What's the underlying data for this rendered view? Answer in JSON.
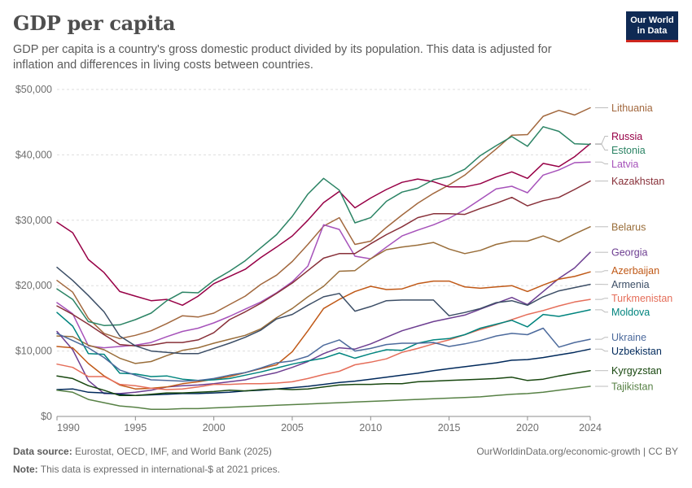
{
  "header": {
    "title": "GDP per capita",
    "subtitle": "GDP per capita is a country's gross domestic product divided by its population. This data is adjusted for inflation and differences in living costs between countries.",
    "logo": "Our World in Data"
  },
  "footer": {
    "source_label": "Data source:",
    "source_text": "Eurostat, OECD, IMF, and World Bank (2025)",
    "note_label": "Note:",
    "note_text": "This data is expressed in international-$ at 2021 prices.",
    "link": "OurWorldinData.org/economic-growth | CC BY"
  },
  "chart_data": {
    "type": "line",
    "title": "GDP per capita",
    "xlim": [
      1990,
      2024
    ],
    "ylim": [
      0,
      50000
    ],
    "x_ticks": [
      1990,
      1995,
      2000,
      2005,
      2010,
      2015,
      2020,
      2024
    ],
    "y_ticks": [
      0,
      10000,
      20000,
      30000,
      40000,
      50000
    ],
    "y_tick_labels": [
      "$0",
      "$10,000",
      "$20,000",
      "$30,000",
      "$40,000",
      "$50,000"
    ],
    "grid": "horizontal",
    "legend": "right",
    "x": [
      1990,
      1991,
      1992,
      1993,
      1994,
      1995,
      1996,
      1997,
      1998,
      1999,
      2000,
      2001,
      2002,
      2003,
      2004,
      2005,
      2006,
      2007,
      2008,
      2009,
      2010,
      2011,
      2012,
      2013,
      2014,
      2015,
      2016,
      2017,
      2018,
      2019,
      2020,
      2021,
      2022,
      2023,
      2024
    ],
    "series": [
      {
        "name": "Lithuania",
        "color": "#a2683e",
        "values": [
          20800,
          19000,
          15000,
          12700,
          11900,
          12400,
          13100,
          14200,
          15400,
          15200,
          15800,
          17100,
          18400,
          20200,
          21600,
          23700,
          26300,
          29100,
          30400,
          26300,
          26800,
          28900,
          30800,
          32600,
          34100,
          35400,
          36900,
          38900,
          40900,
          43000,
          43100,
          45900,
          46800,
          46100,
          47200
        ]
      },
      {
        "name": "Russia",
        "color": "#970046",
        "values": [
          29700,
          28100,
          24000,
          22000,
          19100,
          18400,
          17700,
          17900,
          17000,
          18400,
          20300,
          21400,
          22500,
          24300,
          25900,
          27600,
          30000,
          32700,
          34400,
          31900,
          33400,
          34700,
          35800,
          36300,
          35900,
          35100,
          35100,
          35600,
          36600,
          37400,
          36400,
          38700,
          38200,
          39700,
          41700
        ]
      },
      {
        "name": "Estonia",
        "color": "#2c8465",
        "values": [
          19500,
          17900,
          14500,
          13900,
          14000,
          14800,
          15800,
          17700,
          19000,
          18900,
          20800,
          22200,
          23800,
          25800,
          27800,
          30600,
          34000,
          36400,
          34600,
          29600,
          30400,
          32900,
          34300,
          34900,
          36200,
          36700,
          37800,
          39900,
          41400,
          42800,
          41300,
          44300,
          43600,
          41700,
          41600
        ]
      },
      {
        "name": "Latvia",
        "color": "#a652ba",
        "values": [
          17400,
          15700,
          10800,
          10500,
          10700,
          10900,
          11300,
          12200,
          13000,
          13500,
          14300,
          15300,
          16400,
          17500,
          18900,
          20600,
          23000,
          29300,
          28600,
          24500,
          24100,
          25900,
          27600,
          28500,
          29300,
          30300,
          31600,
          33200,
          34800,
          35200,
          34200,
          36900,
          37700,
          38800,
          38900
        ]
      },
      {
        "name": "Kazakhstan",
        "color": "#883039",
        "values": [
          16900,
          15600,
          14100,
          12500,
          11000,
          10800,
          10900,
          11300,
          11300,
          11700,
          12800,
          14800,
          16000,
          17300,
          18800,
          20400,
          22300,
          24200,
          24900,
          24900,
          26400,
          27800,
          29000,
          30400,
          31000,
          31000,
          30900,
          31800,
          32600,
          33500,
          32200,
          33000,
          33500,
          34700,
          36000
        ]
      },
      {
        "name": "Belarus",
        "color": "#996d39",
        "values": [
          12300,
          12200,
          10900,
          10200,
          8900,
          8100,
          8400,
          9300,
          10100,
          10500,
          11200,
          11800,
          12400,
          13400,
          15100,
          16500,
          18300,
          19900,
          22200,
          22300,
          24100,
          25500,
          25900,
          26200,
          26600,
          25600,
          24900,
          25400,
          26300,
          26800,
          26800,
          27600,
          26700,
          27900,
          29000
        ]
      },
      {
        "name": "Georgia",
        "color": "#6d3e91",
        "values": [
          13000,
          10200,
          5500,
          3500,
          3500,
          3700,
          4000,
          4500,
          4700,
          4800,
          5000,
          5300,
          5600,
          6200,
          6700,
          7500,
          8400,
          9600,
          10500,
          10300,
          11100,
          12100,
          13100,
          13800,
          14500,
          15000,
          15500,
          16400,
          17300,
          18200,
          17100,
          19100,
          21100,
          22700,
          25100
        ]
      },
      {
        "name": "Azerbaijan",
        "color": "#c05917",
        "values": [
          10700,
          10500,
          8100,
          6200,
          4800,
          4200,
          4300,
          4500,
          5000,
          5300,
          5700,
          6100,
          6700,
          7300,
          7900,
          9900,
          13100,
          16500,
          17900,
          19100,
          19900,
          19400,
          19500,
          20300,
          20700,
          20700,
          19800,
          19600,
          19800,
          20000,
          19100,
          20100,
          21000,
          21400,
          22100
        ]
      },
      {
        "name": "Armenia",
        "color": "#3c4e66",
        "values": [
          22800,
          20800,
          18500,
          16000,
          12300,
          10800,
          10000,
          9800,
          9600,
          9600,
          10400,
          11200,
          12100,
          13200,
          14900,
          15600,
          17000,
          18300,
          18800,
          16100,
          16800,
          17700,
          17800,
          17800,
          17800,
          15400,
          15900,
          16500,
          17400,
          17700,
          17000,
          18300,
          19200,
          19700,
          20200
        ]
      },
      {
        "name": "Turkmenistan",
        "color": "#e56e5a",
        "values": [
          8000,
          7500,
          6100,
          6100,
          4900,
          4700,
          4300,
          4100,
          4200,
          4500,
          4900,
          4900,
          5000,
          5000,
          5100,
          5300,
          5800,
          6400,
          6900,
          7900,
          8300,
          8800,
          9800,
          10400,
          11100,
          11700,
          12500,
          13300,
          14000,
          14800,
          15600,
          16200,
          16900,
          17500,
          17900
        ]
      },
      {
        "name": "Moldova",
        "color": "#00847e",
        "values": [
          15900,
          13800,
          9600,
          9500,
          6600,
          6500,
          6100,
          6200,
          5700,
          5500,
          5600,
          5800,
          6300,
          6800,
          7400,
          8000,
          8500,
          8900,
          9700,
          8900,
          9600,
          10200,
          10100,
          11200,
          11700,
          11900,
          12500,
          13500,
          14100,
          14700,
          13700,
          15600,
          15300,
          15800,
          16300
        ]
      },
      {
        "name": "Ukraine",
        "color": "#4c6a9c",
        "values": [
          12700,
          11600,
          10500,
          9000,
          7100,
          6300,
          5600,
          5500,
          5400,
          5500,
          5800,
          6300,
          6700,
          7400,
          8200,
          8500,
          9200,
          10900,
          11700,
          10000,
          10400,
          11000,
          11200,
          11200,
          11300,
          10700,
          11100,
          11600,
          12300,
          12700,
          12500,
          13500,
          10600,
          11300,
          11800
        ]
      },
      {
        "name": "Uzbekistan",
        "color": "#00295b",
        "values": [
          4100,
          4200,
          3700,
          3600,
          3400,
          3200,
          3300,
          3400,
          3500,
          3500,
          3600,
          3700,
          3900,
          4000,
          4200,
          4400,
          4600,
          4900,
          5200,
          5400,
          5700,
          6000,
          6300,
          6600,
          7000,
          7300,
          7600,
          7900,
          8200,
          8600,
          8700,
          9000,
          9400,
          9800,
          10300
        ]
      },
      {
        "name": "Kyrgyzstan",
        "color": "#18470f",
        "values": [
          6200,
          5800,
          4700,
          4000,
          3200,
          3200,
          3400,
          3600,
          3600,
          3700,
          3800,
          4000,
          3900,
          4100,
          4200,
          4100,
          4200,
          4500,
          4800,
          4900,
          4900,
          5000,
          5000,
          5300,
          5400,
          5500,
          5600,
          5700,
          5800,
          6000,
          5500,
          5700,
          6200,
          6600,
          7000
        ]
      },
      {
        "name": "Tajikistan",
        "color": "#578145",
        "values": [
          4000,
          3700,
          2600,
          2100,
          1600,
          1400,
          1100,
          1100,
          1200,
          1200,
          1300,
          1400,
          1500,
          1600,
          1700,
          1800,
          1900,
          2000,
          2100,
          2200,
          2300,
          2400,
          2500,
          2600,
          2700,
          2800,
          2900,
          3000,
          3200,
          3400,
          3500,
          3700,
          4000,
          4300,
          4600
        ]
      }
    ]
  }
}
